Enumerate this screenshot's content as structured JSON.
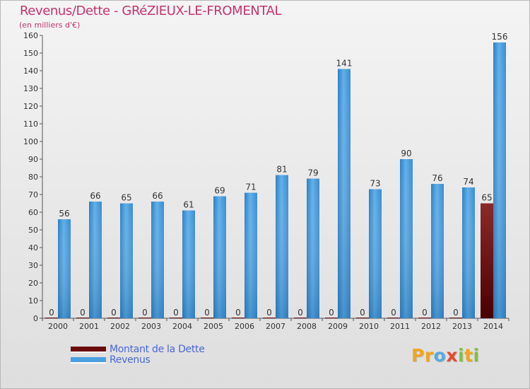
{
  "chart_data": {
    "type": "bar",
    "title": "Revenus/Dette - GRéZIEUX-LE-FROMENTAL",
    "subtitle": "(en milliers d'€)",
    "xlabel": "",
    "ylabel": "",
    "ylim": [
      0,
      160
    ],
    "yticks": [
      0,
      10,
      20,
      30,
      40,
      50,
      60,
      70,
      80,
      90,
      100,
      110,
      120,
      130,
      140,
      150,
      160
    ],
    "categories": [
      "2000",
      "2001",
      "2002",
      "2003",
      "2004",
      "2005",
      "2006",
      "2007",
      "2008",
      "2009",
      "2010",
      "2011",
      "2012",
      "2013",
      "2014"
    ],
    "series": [
      {
        "name": "Montant de la Dette",
        "color": "#6b0a0a",
        "values": [
          0,
          0,
          0,
          0,
          0,
          0,
          0,
          0,
          0,
          0,
          0,
          0,
          0,
          0,
          65
        ]
      },
      {
        "name": "Revenus",
        "color": "#4a9fdf",
        "values": [
          56,
          66,
          65,
          66,
          61,
          69,
          71,
          81,
          79,
          141,
          73,
          90,
          76,
          74,
          156
        ]
      }
    ],
    "legend_position": "bottom-left",
    "grid": false
  },
  "logo": {
    "letters": [
      {
        "ch": "P",
        "color": "#f0a51e"
      },
      {
        "ch": "r",
        "color": "#f0a51e"
      },
      {
        "ch": "o",
        "color": "#55a9e0"
      },
      {
        "ch": "x",
        "color": "#e24a2f"
      },
      {
        "ch": "i",
        "color": "#7fc242"
      },
      {
        "ch": "t",
        "color": "#f0a51e"
      },
      {
        "ch": "i",
        "color": "#7fc242"
      }
    ]
  }
}
